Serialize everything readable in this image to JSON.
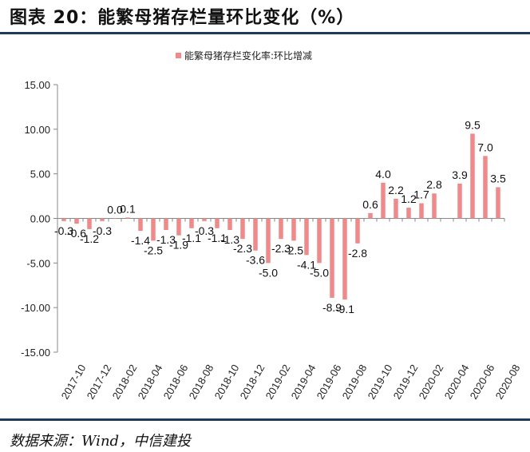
{
  "header": {
    "title": "图表 20：能繁母猪存栏量环比变化（%）"
  },
  "footer": {
    "source": "数据来源：Wind，中信建投"
  },
  "colors": {
    "bar": "#f08a8a",
    "rule": "#1f3b5c",
    "axis": "#888888"
  },
  "chart_data": {
    "type": "bar",
    "legend": {
      "label": "能繁母猪存栏变化率:环比增减",
      "position": "top-center"
    },
    "ylim": [
      -15,
      15
    ],
    "yticks": [
      "15.00",
      "10.00",
      "5.00",
      "0.00",
      "-5.00",
      "-10.00",
      "-15.00"
    ],
    "grid": false,
    "categories": [
      "2017-10",
      "2017-11",
      "2017-12",
      "2018-01",
      "2018-02",
      "2018-03",
      "2018-04",
      "2018-05",
      "2018-06",
      "2018-07",
      "2018-08",
      "2018-09",
      "2018-10",
      "2018-11",
      "2018-12",
      "2019-01",
      "2019-02",
      "2019-03",
      "2019-04",
      "2019-05",
      "2019-06",
      "2019-07",
      "2019-08",
      "2019-09",
      "2019-10",
      "2019-11",
      "2019-12",
      "2020-01",
      "2020-02",
      "2020-03",
      "2020-04",
      "2020-05",
      "2020-06",
      "2020-07",
      "2020-08"
    ],
    "xtick_labels": [
      "2017-10",
      "2017-12",
      "2018-02",
      "2018-04",
      "2018-06",
      "2018-08",
      "2018-10",
      "2018-12",
      "2019-02",
      "2019-04",
      "2019-06",
      "2019-08",
      "2019-10",
      "2019-12",
      "2020-02",
      "2020-04",
      "2020-06",
      "2020-08"
    ],
    "values": [
      -0.3,
      -0.6,
      -1.2,
      -0.3,
      0.0,
      0.1,
      -1.4,
      -2.5,
      -1.3,
      -1.9,
      -1.1,
      -0.3,
      -1.1,
      -1.3,
      -2.3,
      -3.6,
      -5.0,
      -2.3,
      -2.5,
      -4.1,
      -5.0,
      -8.9,
      -9.1,
      -2.8,
      0.6,
      4.0,
      2.2,
      1.2,
      1.7,
      2.8,
      null,
      3.9,
      9.5,
      7.0,
      3.5
    ],
    "data_labels": [
      "-0.3",
      "-0.6",
      "-1.2",
      "-0.3",
      "0.0",
      "0.1",
      "-1.4",
      "-2.5",
      "-1.3",
      "-1.9",
      "-1.1",
      "-0.3",
      "-1.1",
      "-1.3",
      "-2.3",
      "-3.6",
      "-5.0",
      "-2.3",
      "-2.5",
      "-4.1",
      "-5.0",
      "-8.9",
      "-9.1",
      "-2.8",
      "0.6",
      "4.0",
      "2.2",
      "1.2",
      "1.7",
      "2.8",
      "",
      "3.9",
      "9.5",
      "7.0",
      "3.5"
    ]
  }
}
